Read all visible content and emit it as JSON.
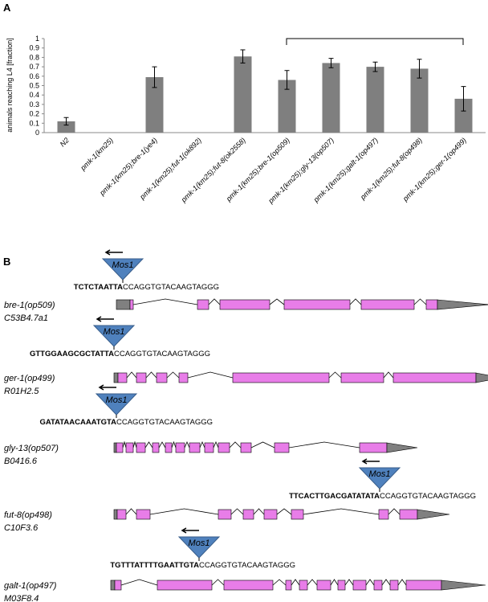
{
  "chart_data": {
    "type": "bar",
    "panel_label": "A",
    "y_label": "animals reaching L4 [fraction]",
    "categories": [
      "N2",
      "pmk-1(km25)",
      "pmk-1(km25);bre-1(ye4)",
      "pmk-1(km25);fut-1(ok892)",
      "pmk-1(km25);fut-8(ok2558)",
      "pmk-1(km25);bre-1(op509)",
      "pmk-1(km25);gly-13(op507)",
      "pmk-1(km25);galt-1(op497)",
      "pmk-1(km25);fut-8(op498)",
      "pmk-1(km25);ger-1(op499)"
    ],
    "values": [
      0.12,
      0,
      0.59,
      0,
      0.81,
      0.56,
      0.74,
      0.7,
      0.68,
      0.36
    ],
    "errors": [
      0.04,
      null,
      0.11,
      null,
      0.07,
      0.1,
      0.05,
      0.05,
      0.1,
      0.13
    ],
    "color": "#7f7f7f",
    "ylim": [
      0,
      1
    ],
    "yticks": [
      0,
      0.1,
      0.2,
      0.3,
      0.4,
      0.5,
      0.6,
      0.7,
      0.8,
      0.9,
      1
    ]
  },
  "panel_b": {
    "label": "B",
    "insert": "Mos1",
    "genes": [
      {
        "allele": "bre-1(op509)",
        "gene_id": "C53B4.7a1",
        "flank": "TCTCTAATTA",
        "sequence": "CCAGGTGTACAAGTAGGG"
      },
      {
        "allele": "ger-1(op499)",
        "gene_id": "R01H2.5",
        "flank": "GTTGGAAGCGCTATTA",
        "sequence": "CCAGGTGTACAAGTAGGG"
      },
      {
        "allele": "gly-13(op507)",
        "gene_id": "B0416.6",
        "flank": "GATATAACAAATGTA",
        "sequence": "CCAGGTGTACAAGTAGGG"
      },
      {
        "allele": "fut-8(op498)",
        "gene_id": "C10F3.6",
        "flank": "TTCACTTGACGATATATA",
        "sequence": "CCAGGTGTACAAGTAGGG"
      },
      {
        "allele": "galt-1(op497)",
        "gene_id": "M03F8.4",
        "flank": "TGTTTATTTTGAATTGTA",
        "sequence": "CCAGGTGTACAAGTAGGG"
      }
    ]
  }
}
